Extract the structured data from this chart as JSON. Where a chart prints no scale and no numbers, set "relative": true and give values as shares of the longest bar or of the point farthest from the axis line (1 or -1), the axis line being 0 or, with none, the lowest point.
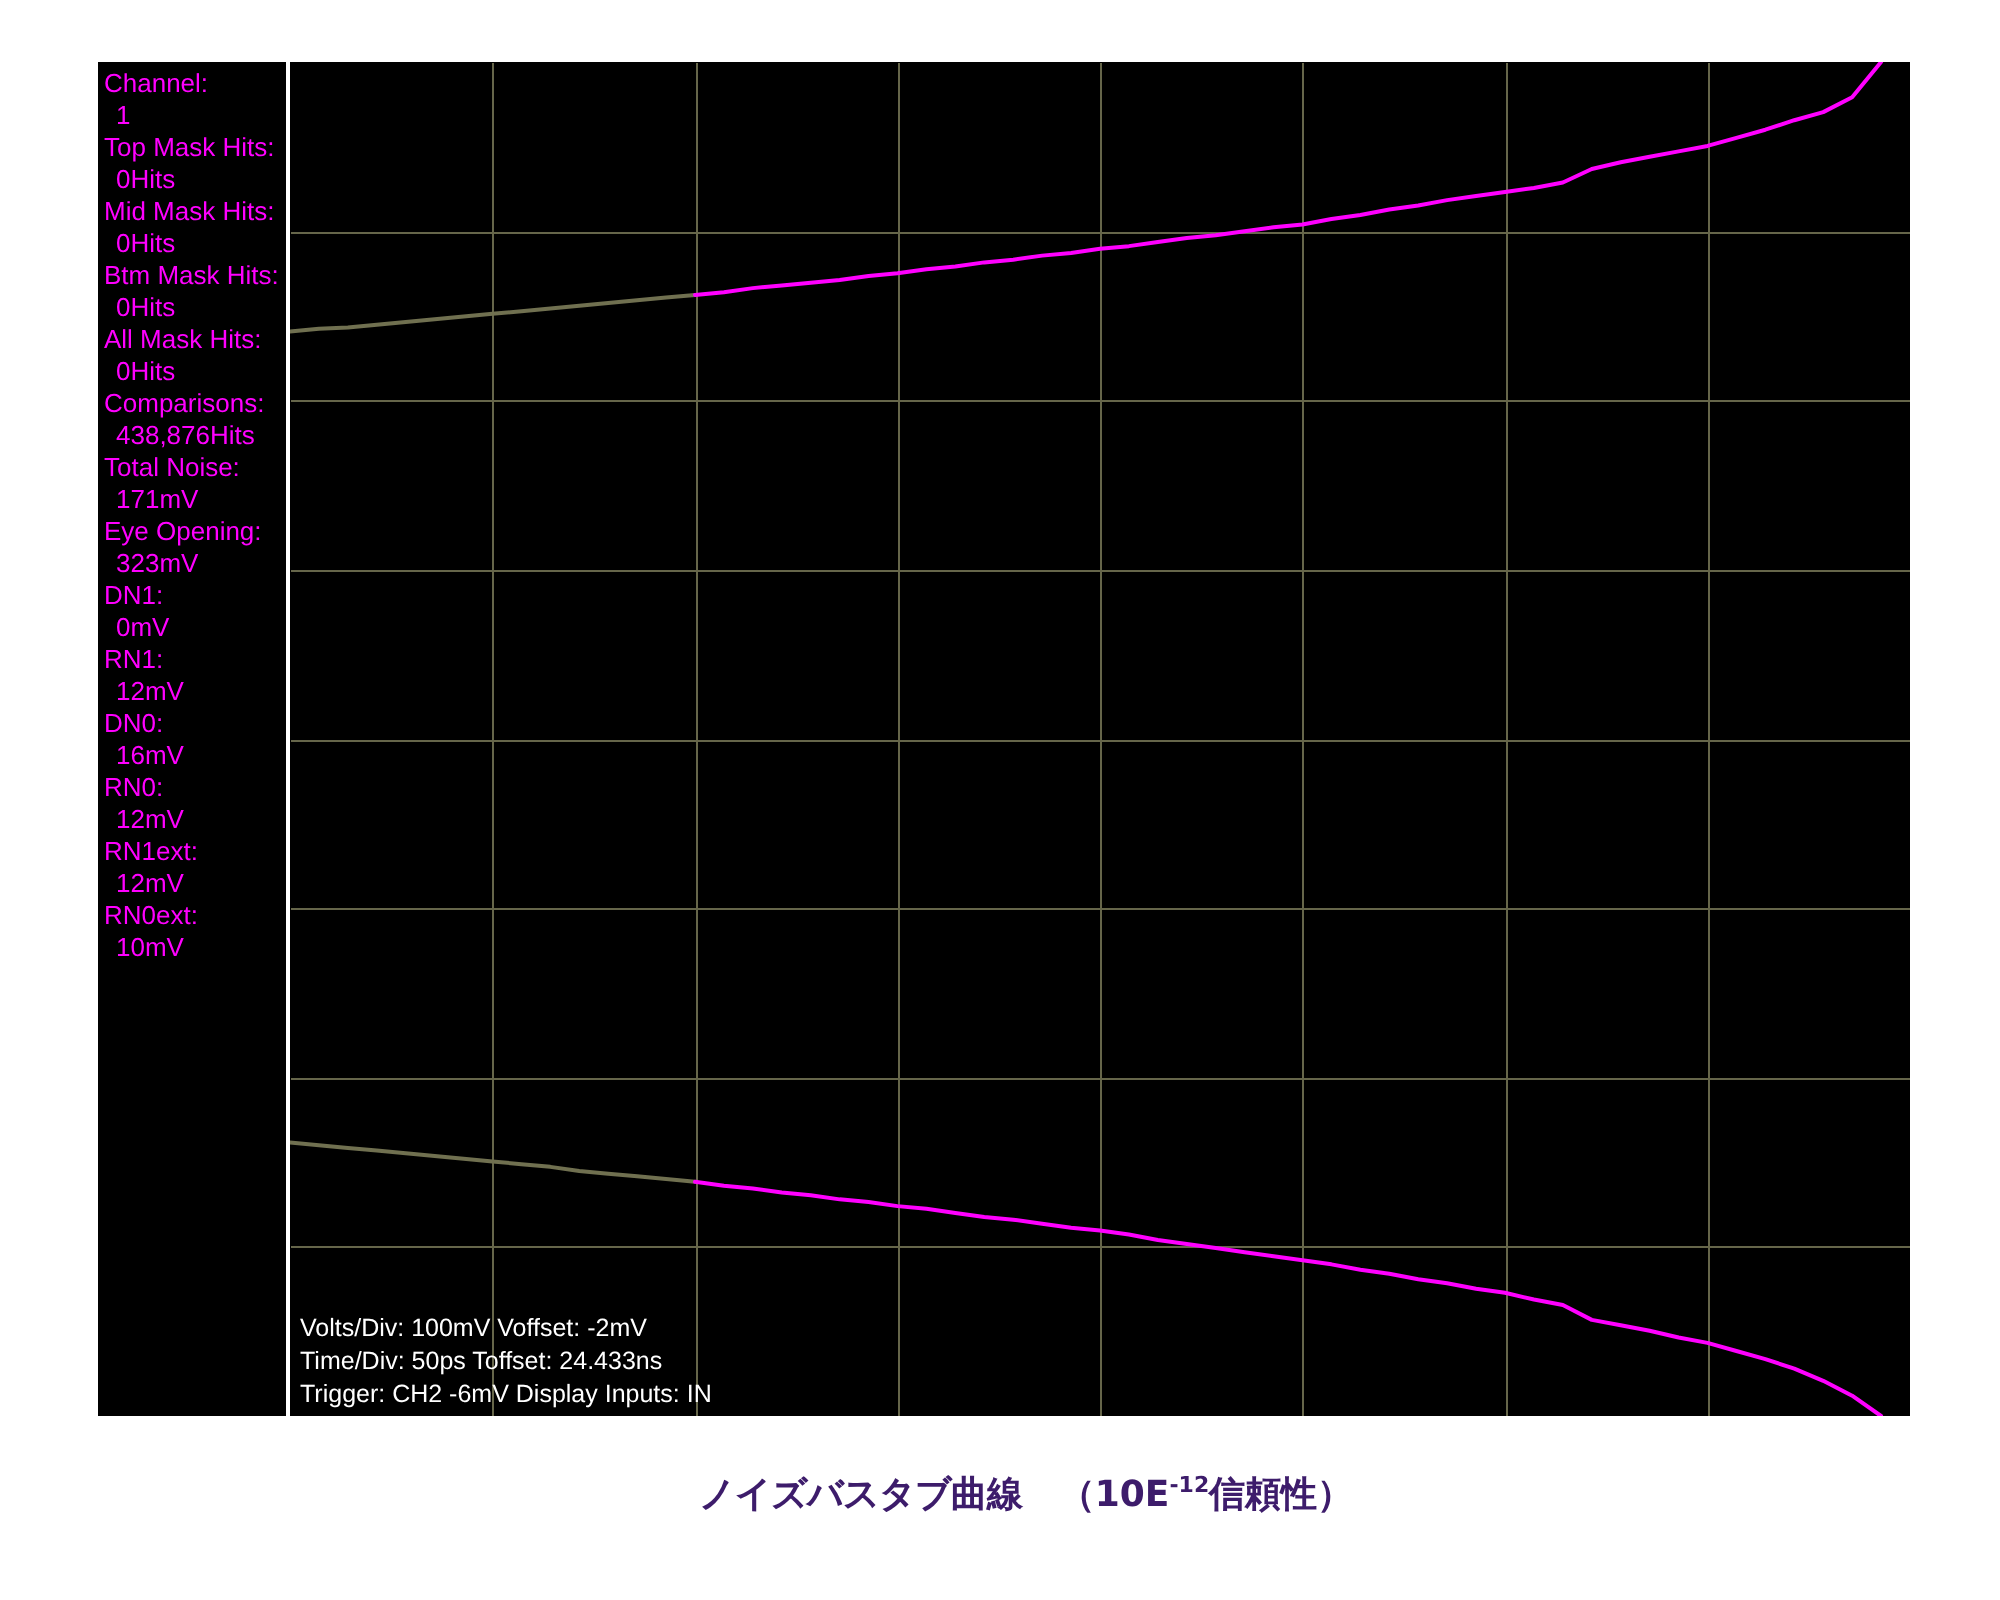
{
  "chart_data": {
    "type": "line",
    "title": "ノイズバスタブ曲線　（10E$^{-12}$信頼性）",
    "annotations": [
      "Channel:\n1",
      "Top Mask Hits:\n0Hits",
      "Mid Mask Hits:\n0Hits",
      "Btm Mask Hits:\n0Hits",
      "All Mask Hits:\n0Hits",
      "Comparisons:\n438,876Hits",
      "Total Noise:\n171mV",
      "Eye Opening:\n323mV",
      "DN1:\n0mV",
      "RN1:\n12mV",
      "DN0:\n16mV",
      "RN0:\n12mV",
      "RN1ext:\n12mV",
      "RN0ext:\n10mV",
      "Volts/Div: 100mV Voffset: -2mV\nTime/Div: 50ps Toffset: 24.433ns\nTrigger: CH2 -6mV Display Inputs: IN"
    ],
    "categories": [
      null,
      null,
      null,
      null,
      null,
      null,
      null,
      null,
      null,
      null,
      null,
      null,
      null,
      null,
      null,
      null,
      null,
      null,
      null,
      null,
      null,
      null,
      null,
      null,
      null,
      null,
      null,
      null,
      null,
      null,
      null,
      null,
      null,
      null,
      null,
      null,
      null,
      null,
      null,
      null,
      null,
      null,
      null,
      null,
      null,
      null,
      null,
      null,
      null,
      null,
      null,
      null,
      null,
      null,
      null,
      null,
      null
    ],
    "relative": true,
    "grid": true,
    "series": [
      {
        "color": "#707050",
        "values": [
          0.801,
          0.803,
          0.804,
          0.806,
          0.808,
          0.81,
          0.812,
          0.814,
          0.816,
          0.818,
          0.82,
          0.822,
          0.824,
          0.826,
          0.828,
          null,
          null,
          null,
          null,
          null,
          null,
          null,
          null,
          null,
          null,
          null,
          null,
          null,
          null,
          null,
          null,
          null,
          null,
          null,
          null,
          null,
          null,
          null,
          null,
          null,
          null,
          null,
          null,
          null,
          null,
          null,
          null,
          null,
          null,
          null,
          null,
          null,
          null,
          null,
          null,
          null,
          null
        ]
      },
      {
        "color": "#ff00ff",
        "values": [
          null,
          null,
          null,
          null,
          null,
          null,
          null,
          null,
          null,
          null,
          null,
          null,
          null,
          null,
          0.828,
          0.83,
          0.833,
          0.835,
          0.837,
          0.839,
          0.842,
          0.844,
          0.847,
          0.849,
          0.852,
          0.854,
          0.857,
          0.859,
          0.862,
          0.864,
          0.867,
          0.87,
          0.872,
          0.875,
          0.878,
          0.88,
          0.884,
          0.887,
          0.891,
          0.894,
          0.898,
          0.901,
          0.904,
          0.907,
          0.911,
          0.921,
          0.926,
          0.93,
          0.934,
          0.938,
          0.944,
          0.95,
          0.957,
          0.963,
          0.974,
          1,
          null
        ]
      },
      {
        "color": "#707050",
        "values": [
          0.202,
          0.2,
          0.198,
          0.196,
          0.194,
          0.192,
          0.19,
          0.188,
          0.186,
          0.184,
          0.181,
          0.179,
          0.177,
          0.175,
          0.173,
          null,
          null,
          null,
          null,
          null,
          null,
          null,
          null,
          null,
          null,
          null,
          null,
          null,
          null,
          null,
          null,
          null,
          null,
          null,
          null,
          null,
          null,
          null,
          null,
          null,
          null,
          null,
          null,
          null,
          null,
          null,
          null,
          null,
          null,
          null,
          null,
          null,
          null,
          null,
          null,
          null,
          null
        ]
      },
      {
        "color": "#ff00ff",
        "values": [
          null,
          null,
          null,
          null,
          null,
          null,
          null,
          null,
          null,
          null,
          null,
          null,
          null,
          null,
          0.173,
          0.17,
          0.168,
          0.165,
          0.163,
          0.16,
          0.158,
          0.155,
          0.153,
          0.15,
          0.147,
          0.145,
          0.142,
          0.139,
          0.137,
          0.134,
          0.13,
          0.127,
          0.124,
          0.121,
          0.118,
          0.115,
          0.112,
          0.108,
          0.105,
          0.101,
          0.098,
          0.094,
          0.091,
          0.086,
          0.082,
          0.071,
          0.067,
          0.063,
          0.058,
          0.054,
          0.048,
          0.042,
          0.035,
          0.026,
          0.015,
          0,
          null
        ]
      }
    ]
  }
}
